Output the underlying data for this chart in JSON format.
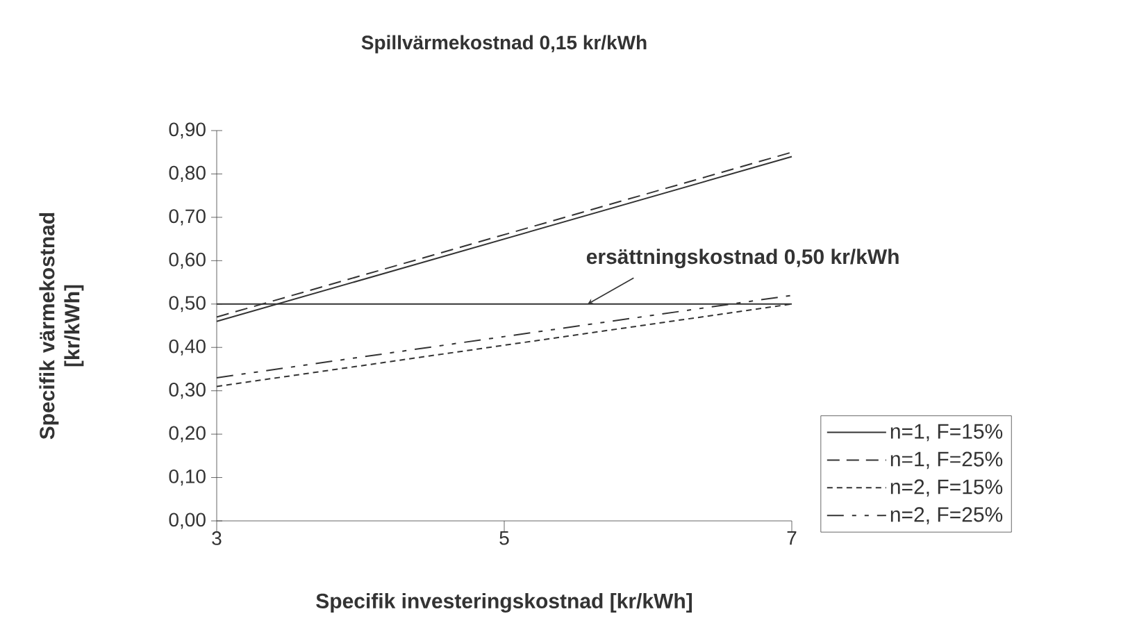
{
  "chart_data": {
    "type": "line",
    "title": "Spillvärmekostnad 0,15 kr/kWh",
    "xlabel": "Specifik investeringskostnad [kr/kWh]",
    "ylabel": "Specifik värmekostnad [kr/kWh]",
    "x": [
      3,
      7
    ],
    "series": [
      {
        "name": "n=1, F=15%",
        "color": "#333333",
        "line_style": "solid",
        "values": [
          0.46,
          0.84
        ]
      },
      {
        "name": "n=1, F=25%",
        "color": "#333333",
        "line_style": "dashed",
        "values": [
          0.47,
          0.85
        ]
      },
      {
        "name": "n=2, F=15%",
        "color": "#333333",
        "line_style": "dotted",
        "values": [
          0.31,
          0.5
        ]
      },
      {
        "name": "n=2, F=25%",
        "color": "#333333",
        "line_style": "dashdot",
        "values": [
          0.33,
          0.52
        ]
      }
    ],
    "xlim": [
      3,
      7
    ],
    "xticks": [
      3,
      5,
      7
    ],
    "ylim": [
      0,
      0.9
    ],
    "yticks": [
      {
        "value": 0,
        "label": "0,00"
      },
      {
        "value": 0.1,
        "label": "0,10"
      },
      {
        "value": 0.2,
        "label": "0,20"
      },
      {
        "value": 0.3,
        "label": "0,30"
      },
      {
        "value": 0.4,
        "label": "0,40"
      },
      {
        "value": 0.5,
        "label": "0,50"
      },
      {
        "value": 0.6,
        "label": "0,60"
      },
      {
        "value": 0.7,
        "label": "0,70"
      },
      {
        "value": 0.8,
        "label": "0,80"
      },
      {
        "value": 0.9,
        "label": "0,90"
      }
    ],
    "ref_lines": [
      {
        "axis": "y",
        "value": 0.5,
        "label": "ersättningskostnad 0,50 kr/kWh",
        "color": "#333333"
      }
    ],
    "grid": false,
    "legend": "bottom right",
    "marker": "none"
  }
}
